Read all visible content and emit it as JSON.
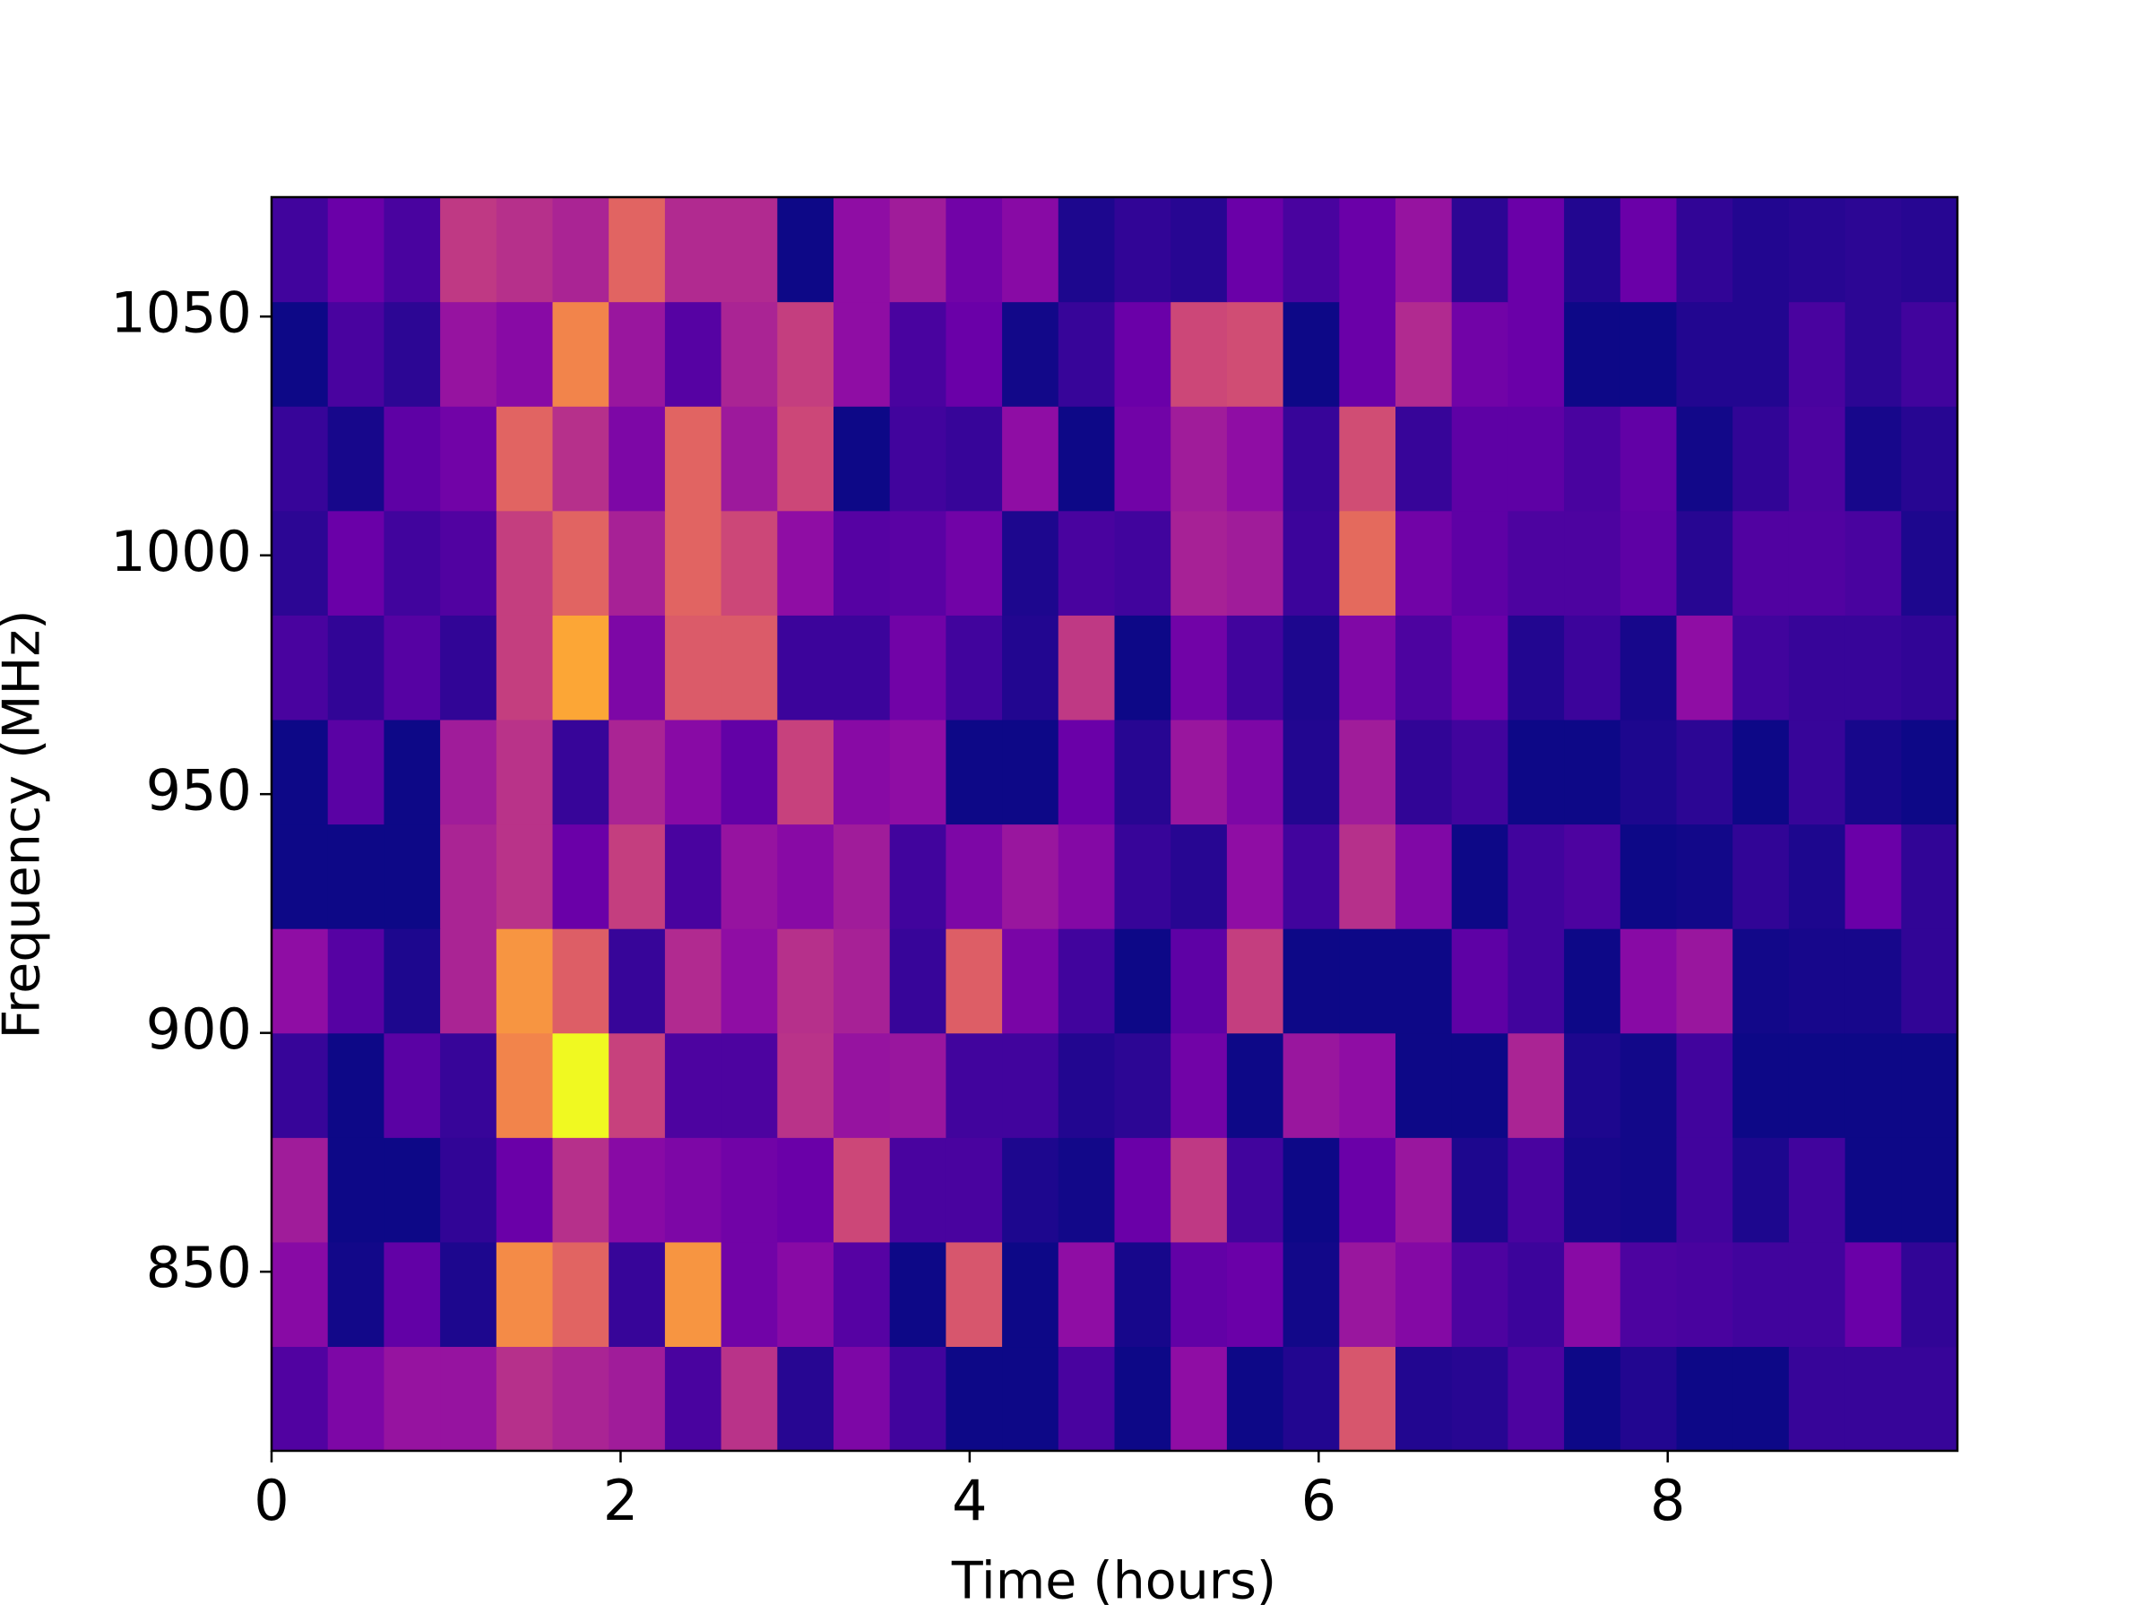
{
  "chart_data": {
    "type": "heatmap",
    "xlabel": "Time (hours)",
    "ylabel": "Frequency (MHz)",
    "colormap": "plasma",
    "clim": [
      0,
      1
    ],
    "xlim": [
      0,
      9.66
    ],
    "ylim": [
      812.5,
      1075
    ],
    "xticks": [
      0,
      2,
      4,
      6,
      8
    ],
    "yticks": [
      850,
      900,
      950,
      1000,
      1050
    ],
    "values": [
      [
        0.14,
        0.25,
        0.32,
        0.32,
        0.42,
        0.38,
        0.35,
        0.12,
        0.43,
        0.05,
        0.25,
        0.1,
        0,
        0,
        0.12,
        0,
        0.3,
        0,
        0.04,
        0.55,
        0.04,
        0.05,
        0.13,
        0,
        0.04,
        0,
        0,
        0.08,
        0.08,
        0.08
      ],
      [
        0.28,
        0.01,
        0.18,
        0.03,
        0.72,
        0.6,
        0.08,
        0.75,
        0.22,
        0.28,
        0.15,
        0,
        0.55,
        0,
        0.3,
        0.02,
        0.18,
        0.2,
        0.01,
        0.33,
        0.27,
        0.13,
        0.09,
        0.28,
        0.13,
        0.12,
        0.1,
        0.1,
        0.2,
        0.07
      ],
      [
        0.35,
        0,
        0,
        0.07,
        0.2,
        0.42,
        0.28,
        0.25,
        0.22,
        0.2,
        0.5,
        0.12,
        0.12,
        0.03,
        0.01,
        0.2,
        0.45,
        0.1,
        0,
        0.2,
        0.33,
        0.03,
        0.12,
        0.02,
        0.01,
        0.1,
        0.03,
        0.1,
        0,
        0
      ],
      [
        0.08,
        0,
        0.16,
        0.08,
        0.7,
        1,
        0.48,
        0.13,
        0.13,
        0.43,
        0.32,
        0.33,
        0.1,
        0.1,
        0.04,
        0.06,
        0.22,
        0,
        0.33,
        0.3,
        0,
        0,
        0.38,
        0.03,
        0.01,
        0.1,
        0,
        0,
        0,
        0
      ],
      [
        0.3,
        0.15,
        0.03,
        0.38,
        0.75,
        0.58,
        0.08,
        0.4,
        0.3,
        0.42,
        0.37,
        0.08,
        0.58,
        0.24,
        0.1,
        0,
        0.17,
        0.47,
        0,
        0,
        0,
        0.17,
        0.1,
        0,
        0.28,
        0.33,
        0.01,
        0.02,
        0.02,
        0.07
      ],
      [
        0,
        0,
        0,
        0.38,
        0.43,
        0.2,
        0.47,
        0.12,
        0.32,
        0.28,
        0.35,
        0.1,
        0.25,
        0.33,
        0.27,
        0.08,
        0.05,
        0.3,
        0.1,
        0.42,
        0.26,
        0,
        0.1,
        0.13,
        0,
        0.01,
        0.07,
        0.03,
        0.2,
        0.07
      ],
      [
        0,
        0.16,
        0,
        0.35,
        0.43,
        0.08,
        0.38,
        0.28,
        0.18,
        0.48,
        0.28,
        0.3,
        0,
        0,
        0.2,
        0.05,
        0.33,
        0.25,
        0.04,
        0.35,
        0.07,
        0.1,
        0,
        0,
        0.03,
        0.06,
        0,
        0.08,
        0.02,
        0
      ],
      [
        0.12,
        0.07,
        0.15,
        0.07,
        0.47,
        0.8,
        0.25,
        0.57,
        0.57,
        0.09,
        0.09,
        0.22,
        0.1,
        0.04,
        0.45,
        0,
        0.22,
        0.1,
        0.03,
        0.26,
        0.13,
        0.2,
        0.04,
        0.09,
        0.02,
        0.3,
        0.1,
        0.08,
        0.08,
        0.07
      ],
      [
        0.06,
        0.2,
        0.1,
        0.14,
        0.47,
        0.6,
        0.37,
        0.6,
        0.5,
        0.3,
        0.15,
        0.16,
        0.22,
        0.03,
        0.12,
        0.1,
        0.37,
        0.35,
        0.09,
        0.62,
        0.22,
        0.17,
        0.13,
        0.13,
        0.17,
        0.05,
        0.14,
        0.14,
        0.12,
        0.03
      ],
      [
        0.08,
        0.02,
        0.17,
        0.22,
        0.6,
        0.42,
        0.25,
        0.6,
        0.34,
        0.5,
        0,
        0.1,
        0.08,
        0.3,
        0,
        0.22,
        0.35,
        0.3,
        0.08,
        0.52,
        0.08,
        0.17,
        0.17,
        0.12,
        0.18,
        0.01,
        0.07,
        0.13,
        0.02,
        0.05
      ],
      [
        0,
        0.12,
        0.06,
        0.32,
        0.28,
        0.7,
        0.33,
        0.15,
        0.38,
        0.47,
        0.3,
        0.12,
        0.2,
        0.01,
        0.08,
        0.2,
        0.5,
        0.52,
        0,
        0.2,
        0.4,
        0.22,
        0.2,
        0,
        0,
        0.04,
        0.04,
        0.12,
        0.06,
        0.1
      ],
      [
        0.1,
        0.2,
        0.12,
        0.45,
        0.42,
        0.38,
        0.6,
        0.4,
        0.4,
        0,
        0.3,
        0.35,
        0.22,
        0.28,
        0.03,
        0.07,
        0.05,
        0.2,
        0.12,
        0.2,
        0.32,
        0.06,
        0.2,
        0.04,
        0.2,
        0.07,
        0.04,
        0.05,
        0.06,
        0.05
      ]
    ]
  }
}
